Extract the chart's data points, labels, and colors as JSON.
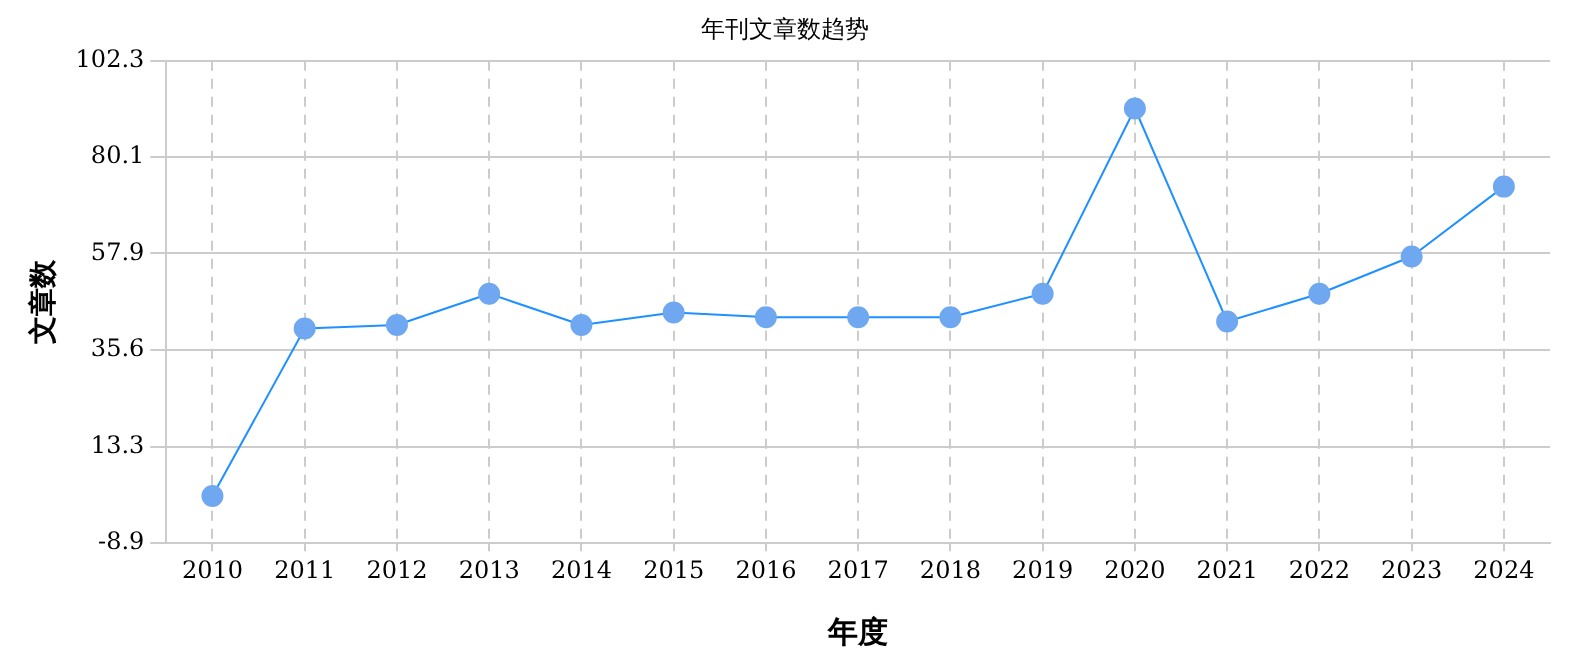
{
  "chart_data": {
    "type": "line",
    "title": "年刊文章数趋势",
    "xlabel": "年度",
    "ylabel": "文章数",
    "categories": [
      "2010",
      "2011",
      "2012",
      "2013",
      "2014",
      "2015",
      "2016",
      "2017",
      "2018",
      "2019",
      "2020",
      "2021",
      "2022",
      "2023",
      "2024"
    ],
    "series": [
      {
        "color": "#1e90ff",
        "values": [
          2,
          40.6,
          41.4,
          48.6,
          41.4,
          44.3,
          43.2,
          43.2,
          43.2,
          48.6,
          91.3,
          42.2,
          48.6,
          57.2,
          73.3
        ]
      }
    ],
    "ylim": [
      -8.9,
      102.3
    ],
    "yticks": [
      -8.9,
      13.3,
      35.6,
      57.9,
      80.1,
      102.3
    ],
    "grid": true,
    "marker": "circle",
    "legend": false
  }
}
